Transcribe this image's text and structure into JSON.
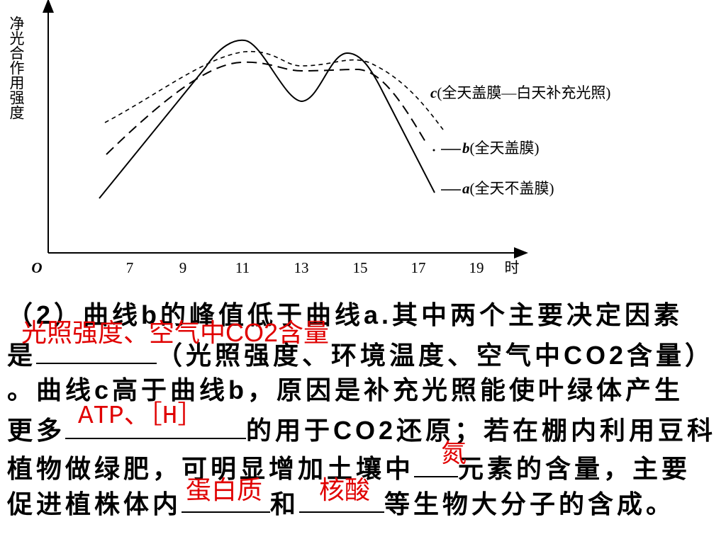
{
  "figure": {
    "y_axis_label": "净光合作用强度",
    "origin_label": "O",
    "x_tick_labels": [
      "7",
      "9",
      "11",
      "13",
      "15",
      "17",
      "19"
    ],
    "x_axis_unit": "时",
    "curves": [
      {
        "letter": "c",
        "description": "(全天盖膜—白天补充光照)"
      },
      {
        "letter": "b",
        "description": "(全天盖膜)"
      },
      {
        "letter": "a",
        "description": "(全天不盖膜)"
      }
    ]
  },
  "question": {
    "line_1": "（2）曲线b的峰值低于曲线a.其中两个主要决定因素",
    "line_2": [
      "是",
      "（光照强度、环境温度、空气中CO2含量）"
    ],
    "line_3": "。曲线c高于曲线b，原因是补充光照能使叶绿体产生",
    "line_4": [
      "更多",
      "的用于CO2还原；若在棚内利用豆科"
    ],
    "line_5": [
      "植物做绿肥，可明显增加土壤中",
      "元素的含量，主要"
    ],
    "line_6": [
      "促进植株体内",
      "和",
      "等生物大分子的含成。"
    ]
  },
  "answers": [
    "光照强度、空气中CO2含量",
    "ATP、［H］",
    "氮",
    "蛋白质",
    "核酸"
  ]
}
